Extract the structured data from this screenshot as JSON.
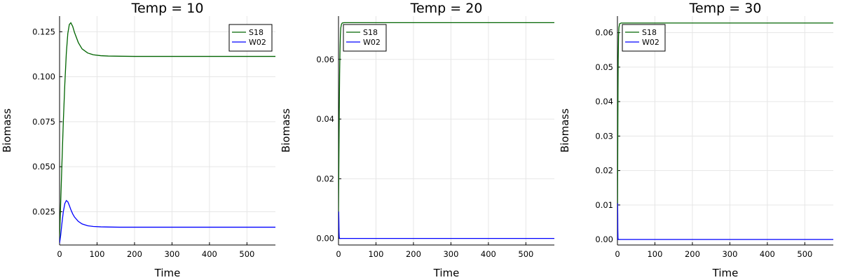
{
  "chart_data": [
    {
      "type": "line",
      "title": "Temp = 10",
      "xlabel": "Time",
      "ylabel": "Biomass",
      "xlim": [
        0,
        576
      ],
      "ylim": [
        0.0065,
        0.1337
      ],
      "xticks": [
        0,
        100,
        200,
        300,
        400,
        500
      ],
      "xtick_labels": [
        "0",
        "100",
        "200",
        "300",
        "400",
        "500"
      ],
      "yticks": [
        0.025,
        0.05,
        0.075,
        0.1,
        0.125
      ],
      "ytick_labels": [
        "0.025",
        "0.050",
        "0.075",
        "0.100",
        "0.125"
      ],
      "grid": true,
      "legend": "top-right",
      "series": [
        {
          "name": "S18",
          "color": "#006400",
          "x": [
            0,
            3,
            6,
            10,
            14,
            18,
            22,
            26,
            30,
            35,
            40,
            50,
            60,
            75,
            90,
            110,
            130,
            160,
            200,
            250,
            300,
            400,
            500,
            576
          ],
          "y": [
            0.01,
            0.03,
            0.05,
            0.075,
            0.096,
            0.113,
            0.124,
            0.129,
            0.13,
            0.128,
            0.1245,
            0.119,
            0.1155,
            0.1132,
            0.1122,
            0.1117,
            0.1115,
            0.1114,
            0.1113,
            0.1113,
            0.1113,
            0.1113,
            0.1113,
            0.1113
          ]
        },
        {
          "name": "W02",
          "color": "#0000ff",
          "x": [
            0,
            3,
            6,
            10,
            14,
            18,
            22,
            26,
            30,
            35,
            40,
            50,
            60,
            75,
            90,
            110,
            130,
            160,
            200,
            250,
            300,
            400,
            500,
            576
          ],
          "y": [
            0.0075,
            0.012,
            0.018,
            0.025,
            0.0295,
            0.0312,
            0.0305,
            0.0285,
            0.0262,
            0.0238,
            0.022,
            0.0196,
            0.0182,
            0.0172,
            0.0168,
            0.0166,
            0.0165,
            0.0164,
            0.0164,
            0.0164,
            0.0164,
            0.0164,
            0.0164,
            0.0164
          ]
        }
      ]
    },
    {
      "type": "line",
      "title": "Temp = 20",
      "xlabel": "Time",
      "ylabel": "Biomass",
      "xlim": [
        0,
        576
      ],
      "ylim": [
        -0.0022,
        0.0745
      ],
      "xticks": [
        0,
        100,
        200,
        300,
        400,
        500
      ],
      "xtick_labels": [
        "0",
        "100",
        "200",
        "300",
        "400",
        "500"
      ],
      "yticks": [
        0,
        0.02,
        0.04,
        0.06
      ],
      "ytick_labels": [
        "0.00",
        "0.02",
        "0.04",
        "0.06"
      ],
      "grid": true,
      "legend": "top-left",
      "series": [
        {
          "name": "S18",
          "color": "#006400",
          "x": [
            0,
            1,
            2,
            3,
            4,
            5,
            6,
            8,
            10,
            15,
            25,
            50,
            100,
            200,
            300,
            400,
            500,
            576
          ],
          "y": [
            0.008,
            0.025,
            0.042,
            0.055,
            0.063,
            0.068,
            0.0705,
            0.0718,
            0.0722,
            0.0723,
            0.0723,
            0.0723,
            0.0723,
            0.0723,
            0.0723,
            0.0723,
            0.0723,
            0.0723
          ]
        },
        {
          "name": "W02",
          "color": "#0000ff",
          "x": [
            0,
            0.5,
            1,
            1.5,
            2,
            3,
            5,
            10,
            50,
            100,
            200,
            300,
            400,
            500,
            576
          ],
          "y": [
            0.008,
            0.009,
            0.006,
            0.002,
            0.0004,
            0.0,
            0.0,
            0.0,
            0.0,
            0.0,
            0.0,
            0.0,
            0.0,
            0.0,
            0.0
          ]
        }
      ]
    },
    {
      "type": "line",
      "title": "Temp = 30",
      "xlabel": "Time",
      "ylabel": "Biomass",
      "xlim": [
        0,
        576
      ],
      "ylim": [
        -0.0016,
        0.0648
      ],
      "xticks": [
        0,
        100,
        200,
        300,
        400,
        500
      ],
      "xtick_labels": [
        "0",
        "100",
        "200",
        "300",
        "400",
        "500"
      ],
      "yticks": [
        0,
        0.01,
        0.02,
        0.03,
        0.04,
        0.05,
        0.06
      ],
      "ytick_labels": [
        "0.00",
        "0.01",
        "0.02",
        "0.03",
        "0.04",
        "0.05",
        "0.06"
      ],
      "grid": true,
      "legend": "top-left",
      "series": [
        {
          "name": "S18",
          "color": "#006400",
          "x": [
            0,
            0.5,
            1,
            1.5,
            2,
            3,
            4,
            6,
            10,
            50,
            100,
            200,
            300,
            400,
            500,
            576
          ],
          "y": [
            0.0,
            0.015,
            0.03,
            0.043,
            0.052,
            0.059,
            0.0615,
            0.0626,
            0.0628,
            0.0628,
            0.0628,
            0.0628,
            0.0628,
            0.0628,
            0.0628,
            0.0628
          ]
        },
        {
          "name": "W02",
          "color": "#0000ff",
          "x": [
            0,
            0.2,
            0.5,
            0.8,
            1,
            1.5,
            2,
            5,
            50,
            100,
            200,
            300,
            400,
            500,
            576
          ],
          "y": [
            0.0,
            0.008,
            0.0105,
            0.007,
            0.003,
            0.0005,
            0.0,
            0.0,
            0.0,
            0.0,
            0.0,
            0.0,
            0.0,
            0.0,
            0.0
          ]
        }
      ]
    }
  ]
}
